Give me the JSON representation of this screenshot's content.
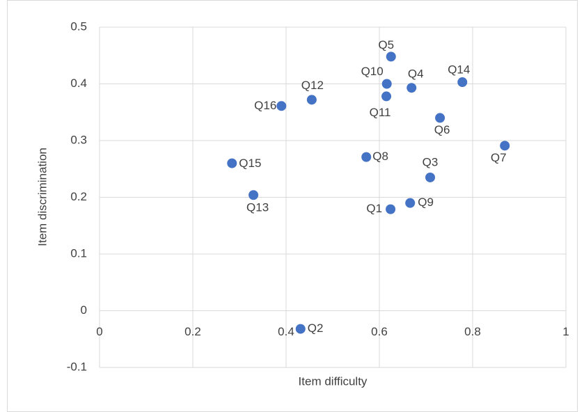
{
  "chart_data": {
    "type": "scatter",
    "x_label": "Item difficulty",
    "y_label": "Item discrimination",
    "color": "#4472c4",
    "grid": true,
    "xlim": [
      0,
      1
    ],
    "xticks": [
      0,
      0.2,
      0.4,
      0.6,
      0.8,
      1
    ],
    "ylim": [
      -0.1,
      0.5
    ],
    "yticks": [
      -0.1,
      0,
      0.1,
      0.2,
      0.3,
      0.4,
      0.5
    ],
    "series": [
      {
        "names": [
          "Q1",
          "Q2",
          "Q3",
          "Q4",
          "Q5",
          "Q6",
          "Q7",
          "Q8",
          "Q9",
          "Q10",
          "Q11",
          "Q12",
          "Q13",
          "Q14",
          "Q15",
          "Q16"
        ],
        "x": [
          0.624,
          0.431,
          0.709,
          0.669,
          0.625,
          0.73,
          0.869,
          0.572,
          0.666,
          0.616,
          0.615,
          0.455,
          0.33,
          0.778,
          0.284,
          0.39
        ],
        "values": [
          0.179,
          -0.032,
          0.235,
          0.393,
          0.448,
          0.34,
          0.291,
          0.271,
          0.19,
          0.4,
          0.378,
          0.372,
          0.204,
          0.403,
          0.26,
          0.361
        ]
      }
    ]
  }
}
